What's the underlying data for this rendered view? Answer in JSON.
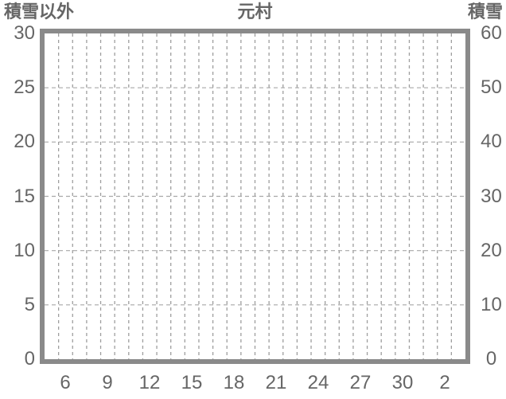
{
  "chart_data": {
    "type": "line",
    "title": "元村",
    "series": [],
    "x_axis": {
      "tick_labels": [
        "6",
        "9",
        "12",
        "15",
        "18",
        "21",
        "24",
        "27",
        "30",
        "2"
      ],
      "tick_category_indices": [
        1,
        4,
        7,
        10,
        13,
        16,
        19,
        22,
        25,
        28
      ],
      "categories_count": 30
    },
    "y_left": {
      "label": "積雪以外",
      "ticks": [
        0,
        5,
        10,
        15,
        20,
        25,
        30
      ],
      "range": [
        0,
        30
      ]
    },
    "y_right": {
      "label": "積雪",
      "ticks": [
        0,
        10,
        20,
        30,
        40,
        50,
        60
      ],
      "range": [
        0,
        60
      ]
    },
    "grid": true,
    "legend_position": "none"
  },
  "colors": {
    "frame": "#8a8a8a",
    "text": "#666666",
    "gridline_vertical": "#9e9e9e",
    "gridline_horizontal": "#a8a8a8",
    "background": "#ffffff"
  }
}
